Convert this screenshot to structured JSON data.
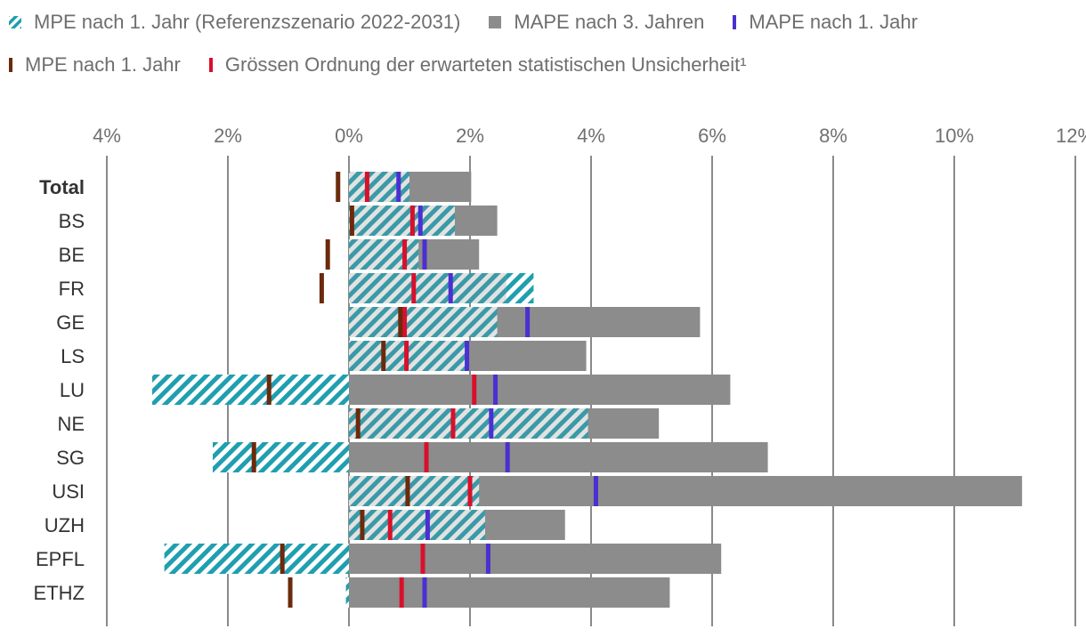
{
  "legend": {
    "mpe_ref": "MPE nach 1. Jahr (Referenzszenario 2022-2031)",
    "mape3": "MAPE nach 3. Jahren",
    "mape1": "MAPE nach 1. Jahr",
    "mpe1": "MPE nach 1. Jahr",
    "unc": "Grössen Ordnung der erwarteten statistischen Unsicherheit¹"
  },
  "colors": {
    "teal": "#1f9fb0",
    "gray": "#8c8c8c",
    "purple": "#4b2fd1",
    "brown": "#6b2a0c",
    "red": "#d8102c",
    "grid": "#8a8a8a",
    "tick_text": "#707070",
    "category_text": "#333333"
  },
  "chart_data": {
    "type": "bar",
    "orientation": "horizontal",
    "x_axis": {
      "range": [
        -4,
        12
      ],
      "ticks": [
        -4,
        -2,
        0,
        2,
        4,
        6,
        8,
        10,
        12
      ],
      "tick_labels": [
        "4%",
        "2%",
        "0%",
        "2%",
        "4%",
        "6%",
        "8%",
        "10%",
        "12%"
      ],
      "position": "top",
      "grid": true
    },
    "categories": [
      "Total",
      "BS",
      "BE",
      "FR",
      "GE",
      "LS",
      "LU",
      "NE",
      "SG",
      "USI",
      "UZH",
      "EPFL",
      "ETHZ"
    ],
    "bold_categories": [
      "Total"
    ],
    "series": [
      {
        "name": "MPE nach 1. Jahr (Referenzszenario 2022-2031)",
        "style": "hatched-bar",
        "values": [
          1.0,
          1.75,
          1.15,
          3.05,
          2.45,
          1.95,
          -3.25,
          3.95,
          -2.25,
          2.15,
          2.25,
          -3.05,
          -0.05
        ]
      },
      {
        "name": "MAPE nach 3. Jahren",
        "style": "bar",
        "values": [
          2.02,
          2.45,
          2.15,
          2.6,
          5.8,
          3.92,
          6.3,
          5.12,
          6.92,
          11.12,
          3.57,
          6.15,
          5.3
        ]
      },
      {
        "name": "MAPE nach 1. Jahr",
        "style": "tick",
        "values": [
          0.82,
          1.18,
          1.25,
          1.68,
          2.95,
          1.95,
          2.42,
          2.35,
          2.62,
          4.08,
          1.3,
          2.3,
          1.25
        ]
      },
      {
        "name": "MPE nach 1. Jahr",
        "style": "tick",
        "values": [
          -0.18,
          0.05,
          -0.35,
          -0.45,
          0.85,
          0.57,
          -1.32,
          0.15,
          -1.57,
          0.97,
          0.22,
          -1.1,
          -0.97
        ]
      },
      {
        "name": "Grössen Ordnung der erwarteten statistischen Unsicherheit¹",
        "style": "tick",
        "values": [
          0.3,
          1.05,
          0.92,
          1.07,
          0.92,
          0.95,
          2.07,
          1.72,
          1.28,
          2.0,
          0.68,
          1.22,
          0.87
        ]
      }
    ]
  }
}
